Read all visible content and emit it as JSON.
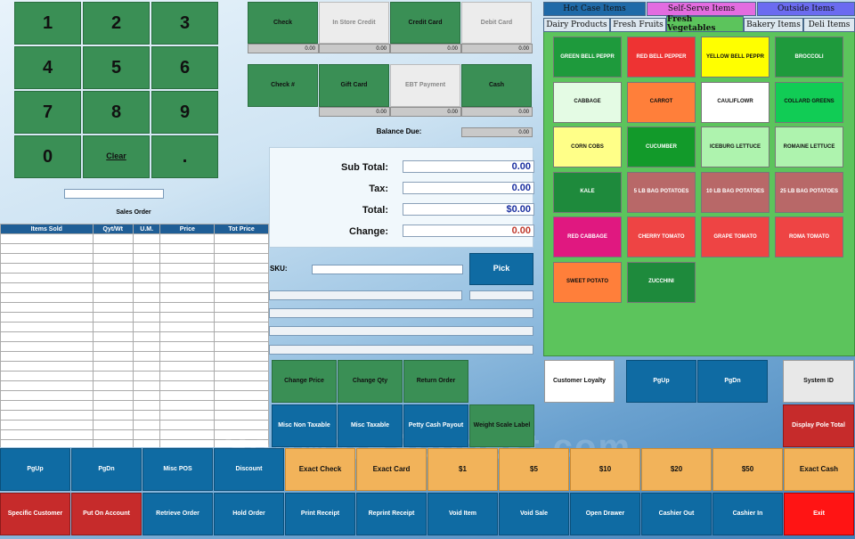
{
  "keypad": {
    "keys": [
      "1",
      "2",
      "3",
      "4",
      "5",
      "6",
      "7",
      "8",
      "9",
      "0",
      "Clear",
      "."
    ]
  },
  "sales_order_label": "Sales Order",
  "items_table": {
    "headers": [
      "Items Sold",
      "Qyt/Wt",
      "U.M.",
      "Price",
      "Tot Price"
    ]
  },
  "payment_row1": [
    {
      "label": "Check",
      "amount": "0.00"
    },
    {
      "label": "In Store Credit",
      "amount": "0.00"
    },
    {
      "label": "Credit Card",
      "amount": "0.00"
    },
    {
      "label": "Debit Card",
      "amount": "0.00"
    }
  ],
  "payment_row2": [
    {
      "label": "Check #"
    },
    {
      "label": "Gift Card",
      "amount": "0.00"
    },
    {
      "label": "EBT Payment",
      "amount": "0.00"
    },
    {
      "label": "Cash",
      "amount": "0.00"
    }
  ],
  "balance": {
    "label": "Balance Due:",
    "amount": "0.00"
  },
  "summary": {
    "subtotal_label": "Sub Total:",
    "subtotal": "0.00",
    "tax_label": "Tax:",
    "tax": "0.00",
    "total_label": "Total:",
    "total": "$0.00",
    "change_label": "Change:",
    "change": "0.00"
  },
  "sku": {
    "label": "SKU:",
    "value": "",
    "pick": "Pick"
  },
  "order_actions": [
    "Change Price",
    "Change Qty",
    "Return Order",
    "Misc Non Taxable",
    "Misc Taxable",
    "Petty Cash Payout",
    "Weight Scale Label"
  ],
  "category_tabs_top": [
    "Hot Case Items",
    "Self-Serve Items",
    "Outside Items"
  ],
  "category_tabs_bottom": [
    "Dairy Products",
    "Fresh Fruits",
    "Fresh Vegetables",
    "Bakery Items",
    "Deli Items"
  ],
  "products": [
    {
      "label": "GREEN BELL PEPPR",
      "color": "#1e9a3c",
      "text": "#fff"
    },
    {
      "label": "RED BELL PEPPER",
      "color": "#ee3333",
      "text": "#fff"
    },
    {
      "label": "YELLOW BELL PEPPR",
      "color": "#ffff00",
      "text": "#111"
    },
    {
      "label": "BROCCOLI",
      "color": "#1e9a3c",
      "text": "#fff"
    },
    {
      "label": "CABBAGE",
      "color": "#e4fbe4",
      "text": "#111"
    },
    {
      "label": "CARROT",
      "color": "#ff7f3a",
      "text": "#111"
    },
    {
      "label": "CAULIFLOWR",
      "color": "#ffffff",
      "text": "#111"
    },
    {
      "label": "COLLARD GREENS",
      "color": "#11cc55",
      "text": "#111"
    },
    {
      "label": "CORN COBS",
      "color": "#ffff88",
      "text": "#111"
    },
    {
      "label": "CUCUMBER",
      "color": "#129a2a",
      "text": "#fff"
    },
    {
      "label": "ICEBURG LETTUCE",
      "color": "#aef3ae",
      "text": "#111"
    },
    {
      "label": "ROMAINE LETTUCE",
      "color": "#aef3ae",
      "text": "#111"
    },
    {
      "label": "KALE",
      "color": "#1e8a3c",
      "text": "#fff"
    },
    {
      "label": "5 LB BAG POTATOES",
      "color": "#b86868",
      "text": "#fff"
    },
    {
      "label": "10 LB BAG POTATOES",
      "color": "#b86868",
      "text": "#fff"
    },
    {
      "label": "25 LB BAG POTATOES",
      "color": "#b86868",
      "text": "#fff"
    },
    {
      "label": "RED CABBAGE",
      "color": "#e01880",
      "text": "#fff"
    },
    {
      "label": "CHERRY TOMATO",
      "color": "#ee4444",
      "text": "#fff"
    },
    {
      "label": "GRAPE TOMATO",
      "color": "#ee4444",
      "text": "#fff"
    },
    {
      "label": "ROMA TOMATO",
      "color": "#ee4444",
      "text": "#fff"
    },
    {
      "label": "SWEET POTATO",
      "color": "#ff7f3a",
      "text": "#111"
    },
    {
      "label": "ZUCCHINI",
      "color": "#1e8a3c",
      "text": "#fff"
    }
  ],
  "right_mid": {
    "loyalty": "Customer Loyalty",
    "pgup": "PgUp",
    "pgdn": "PgDn",
    "system_id": "System ID",
    "pole": "Display Pole Total"
  },
  "bottom_row1": [
    "PgUp",
    "PgDn",
    "Misc POS",
    "Discount",
    "Exact Check",
    "Exact Card",
    "$1",
    "$5",
    "$10",
    "$20",
    "$50",
    "Exact Cash"
  ],
  "bottom_row2": [
    "Specific Customer",
    "Put On Account",
    "Retrieve Order",
    "Hold Order",
    "Print Receipt",
    "Reprint Receipt",
    "Void Item",
    "Void Sale",
    "Open Drawer",
    "Cashier Out",
    "Cashier In",
    "Exit"
  ],
  "watermark": "SoftwareSuggest.com",
  "colors": {
    "green": "#3a8f55",
    "blue": "#0f6ba3",
    "orange": "#f2b35a",
    "red": "#c62b2b",
    "panel_green": "#5cc45c"
  }
}
